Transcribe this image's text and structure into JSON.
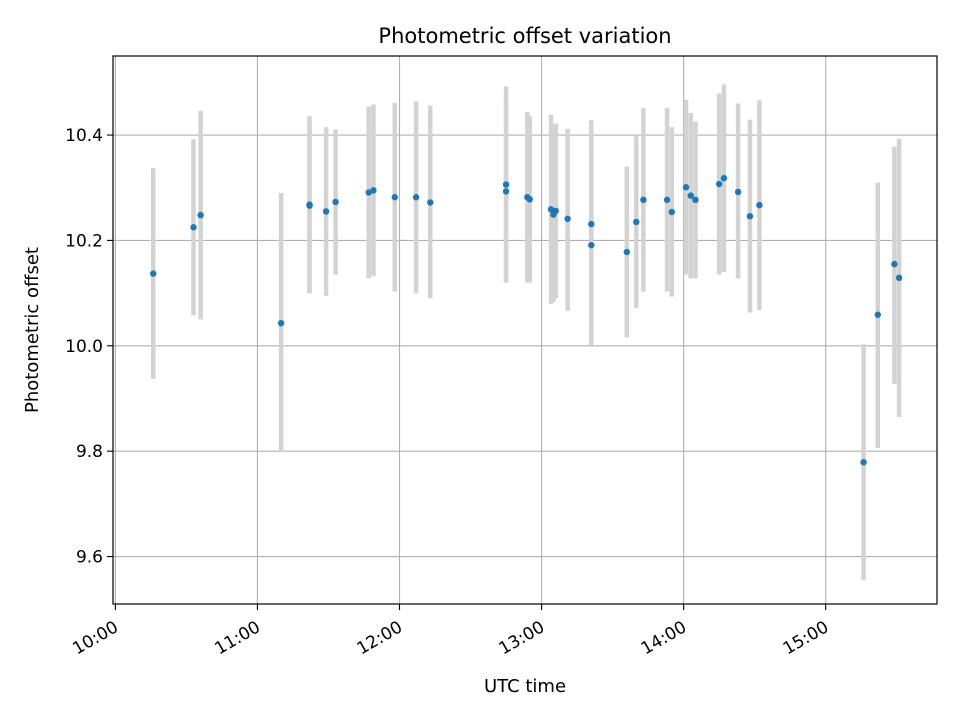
{
  "chart_data": {
    "type": "scatter",
    "title": "Photometric offset variation",
    "xlabel": "UTC time",
    "ylabel": "Photometric offset",
    "xlim": [
      "09:59",
      "15:47"
    ],
    "ylim": [
      9.51,
      10.55
    ],
    "grid": true,
    "x_ticks": [
      "10:00",
      "11:00",
      "12:00",
      "13:00",
      "14:00",
      "15:00"
    ],
    "y_ticks": [
      9.6,
      9.8,
      10.0,
      10.2,
      10.4
    ],
    "marker_color": "#1f77b4",
    "errorbar_color": "#d3d3d3",
    "points": [
      {
        "t": "10:16",
        "y": 10.137,
        "lo": 9.937,
        "hi": 10.337
      },
      {
        "t": "10:33",
        "y": 10.225,
        "lo": 10.058,
        "hi": 10.392
      },
      {
        "t": "10:36",
        "y": 10.248,
        "lo": 10.05,
        "hi": 10.446
      },
      {
        "t": "11:10",
        "y": 10.043,
        "lo": 9.798,
        "hi": 10.29
      },
      {
        "t": "11:22",
        "y": 10.268,
        "lo": 10.1,
        "hi": 10.436
      },
      {
        "t": "11:22",
        "y": 10.266,
        "lo": 10.1,
        "hi": 10.432
      },
      {
        "t": "11:29",
        "y": 10.255,
        "lo": 10.095,
        "hi": 10.415
      },
      {
        "t": "11:33",
        "y": 10.273,
        "lo": 10.135,
        "hi": 10.411
      },
      {
        "t": "11:47",
        "y": 10.291,
        "lo": 10.128,
        "hi": 10.454
      },
      {
        "t": "11:49",
        "y": 10.295,
        "lo": 10.132,
        "hi": 10.458
      },
      {
        "t": "11:58",
        "y": 10.282,
        "lo": 10.103,
        "hi": 10.461
      },
      {
        "t": "12:07",
        "y": 10.282,
        "lo": 10.1,
        "hi": 10.464
      },
      {
        "t": "12:13",
        "y": 10.272,
        "lo": 10.09,
        "hi": 10.456
      },
      {
        "t": "12:45",
        "y": 10.293,
        "lo": 10.12,
        "hi": 10.466
      },
      {
        "t": "12:45",
        "y": 10.306,
        "lo": 10.12,
        "hi": 10.492
      },
      {
        "t": "12:54",
        "y": 10.282,
        "lo": 10.12,
        "hi": 10.444
      },
      {
        "t": "12:55",
        "y": 10.278,
        "lo": 10.12,
        "hi": 10.436
      },
      {
        "t": "13:04",
        "y": 10.259,
        "lo": 10.08,
        "hi": 10.438
      },
      {
        "t": "13:05",
        "y": 10.249,
        "lo": 10.083,
        "hi": 10.415
      },
      {
        "t": "13:06",
        "y": 10.256,
        "lo": 10.09,
        "hi": 10.422
      },
      {
        "t": "13:11",
        "y": 10.241,
        "lo": 10.066,
        "hi": 10.412
      },
      {
        "t": "13:21",
        "y": 10.191,
        "lo": 10.001,
        "hi": 10.379
      },
      {
        "t": "13:21",
        "y": 10.231,
        "lo": 10.034,
        "hi": 10.428
      },
      {
        "t": "13:36",
        "y": 10.178,
        "lo": 10.016,
        "hi": 10.34
      },
      {
        "t": "13:40",
        "y": 10.235,
        "lo": 10.072,
        "hi": 10.398
      },
      {
        "t": "13:43",
        "y": 10.277,
        "lo": 10.103,
        "hi": 10.451
      },
      {
        "t": "13:53",
        "y": 10.277,
        "lo": 10.103,
        "hi": 10.451
      },
      {
        "t": "13:55",
        "y": 10.254,
        "lo": 10.093,
        "hi": 10.415
      },
      {
        "t": "14:01",
        "y": 10.301,
        "lo": 10.135,
        "hi": 10.467
      },
      {
        "t": "14:03",
        "y": 10.285,
        "lo": 10.128,
        "hi": 10.442
      },
      {
        "t": "14:05",
        "y": 10.277,
        "lo": 10.128,
        "hi": 10.426
      },
      {
        "t": "14:15",
        "y": 10.307,
        "lo": 10.135,
        "hi": 10.479
      },
      {
        "t": "14:17",
        "y": 10.318,
        "lo": 10.14,
        "hi": 10.496
      },
      {
        "t": "14:23",
        "y": 10.292,
        "lo": 10.128,
        "hi": 10.46
      },
      {
        "t": "14:28",
        "y": 10.246,
        "lo": 10.063,
        "hi": 10.429
      },
      {
        "t": "14:32",
        "y": 10.267,
        "lo": 10.068,
        "hi": 10.466
      },
      {
        "t": "15:16",
        "y": 9.779,
        "lo": 9.555,
        "hi": 10.003
      },
      {
        "t": "15:22",
        "y": 10.059,
        "lo": 9.806,
        "hi": 10.31
      },
      {
        "t": "15:29",
        "y": 10.155,
        "lo": 9.928,
        "hi": 10.378
      },
      {
        "t": "15:31",
        "y": 10.129,
        "lo": 9.865,
        "hi": 10.393
      }
    ]
  }
}
